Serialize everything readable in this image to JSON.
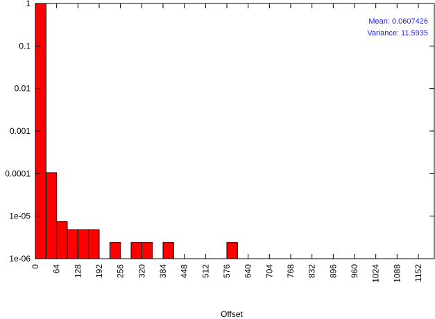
{
  "chart_data": {
    "type": "bar",
    "xlabel": "Offset",
    "ylabel": "",
    "y_scale": "log",
    "ylim": [
      1e-06,
      1
    ],
    "xlim": [
      0,
      1200
    ],
    "bin_width": 32,
    "grid": false,
    "y_ticks": [
      "1",
      "0.1",
      "0.01",
      "0.001",
      "0.0001",
      "1e-05",
      "1e-06"
    ],
    "y_tick_values": [
      1,
      0.1,
      0.01,
      0.001,
      0.0001,
      1e-05,
      1e-06
    ],
    "x_ticks": [
      "0",
      "64",
      "128",
      "192",
      "256",
      "320",
      "384",
      "448",
      "512",
      "576",
      "640",
      "704",
      "768",
      "832",
      "896",
      "960",
      "1024",
      "1088",
      "1152"
    ],
    "x_tick_values": [
      0,
      64,
      128,
      192,
      256,
      320,
      384,
      448,
      512,
      576,
      640,
      704,
      768,
      832,
      896,
      960,
      1024,
      1088,
      1152
    ],
    "bars": [
      {
        "x_start": 0,
        "value": 1
      },
      {
        "x_start": 32,
        "value": 0.000105
      },
      {
        "x_start": 64,
        "value": 7.4e-06
      },
      {
        "x_start": 96,
        "value": 4.8e-06
      },
      {
        "x_start": 128,
        "value": 4.8e-06
      },
      {
        "x_start": 160,
        "value": 4.8e-06
      },
      {
        "x_start": 224,
        "value": 2.4e-06
      },
      {
        "x_start": 288,
        "value": 2.4e-06
      },
      {
        "x_start": 320,
        "value": 2.4e-06
      },
      {
        "x_start": 384,
        "value": 2.4e-06
      },
      {
        "x_start": 576,
        "value": 2.4e-06
      }
    ],
    "bar_color": "#ff0000",
    "annotations": {
      "mean": "Mean: 0.0607426",
      "variance": "Variance: 11.5935"
    },
    "annotation_color": "#1a1aff"
  }
}
